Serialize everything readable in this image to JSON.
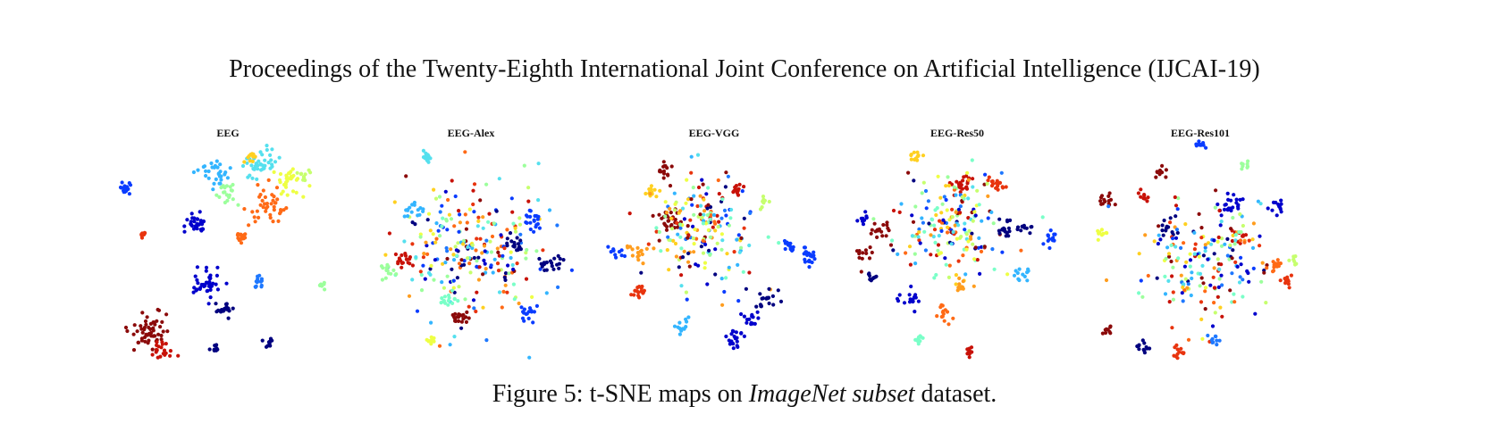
{
  "header": {
    "running_title": "Proceedings of the Twenty-Eighth International Joint Conference on Artificial Intelligence (IJCAI-19)"
  },
  "figure": {
    "caption_prefix": "Figure 5: t-SNE maps on ",
    "caption_italic": "ImageNet subset",
    "caption_suffix": " dataset."
  },
  "chart_data": [
    {
      "type": "scatter",
      "title": "EEG"
    },
    {
      "type": "scatter",
      "title": "EEG-Alex"
    },
    {
      "type": "scatter",
      "title": "EEG-VGG"
    },
    {
      "type": "scatter",
      "title": "EEG-Res50"
    },
    {
      "type": "scatter",
      "title": "EEG-Res101"
    }
  ],
  "colors": {
    "palette": [
      "#00007f",
      "#0000cc",
      "#0a3cff",
      "#1e78ff",
      "#33b5ff",
      "#55e0ee",
      "#7affc8",
      "#9cff9c",
      "#c6ff6e",
      "#eeff44",
      "#ffd020",
      "#ff9d1e",
      "#ff6a16",
      "#e8340e",
      "#c81208",
      "#8b0a0a"
    ]
  }
}
